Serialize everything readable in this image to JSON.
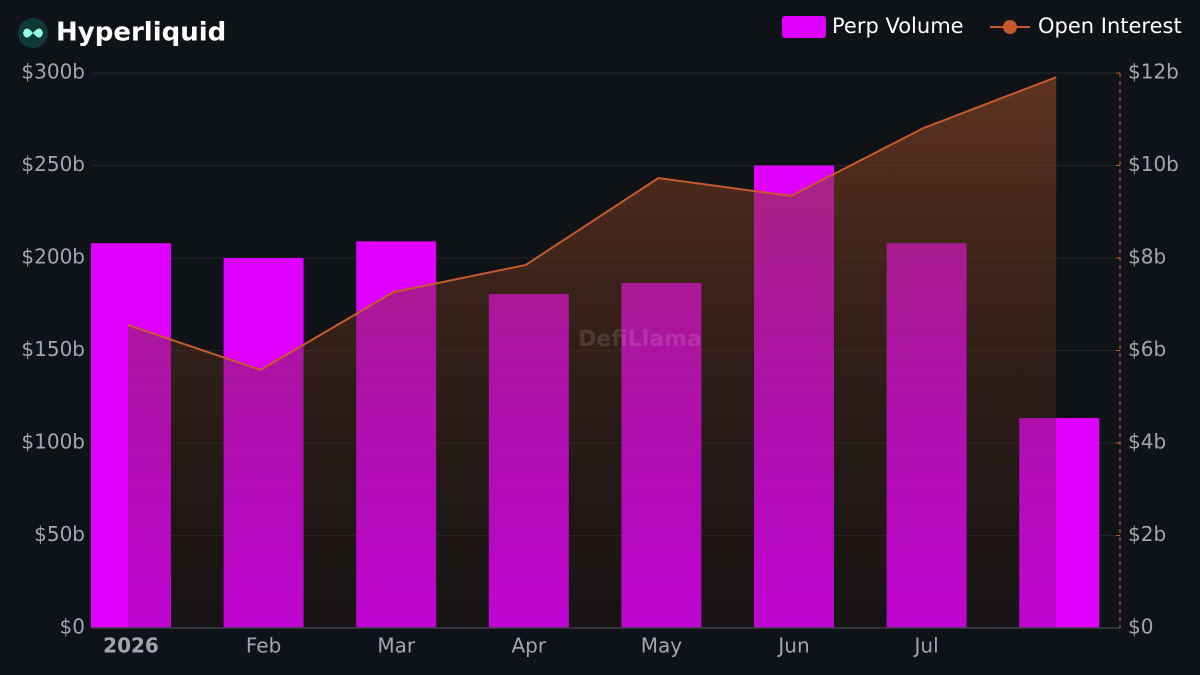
{
  "chart_data": {
    "type": "bar",
    "title": "Hyperliquid",
    "watermark": "DefiLlama",
    "categories": [
      "2026",
      "Feb",
      "Mar",
      "Apr",
      "May",
      "Jun",
      "Jul",
      null
    ],
    "series": [
      {
        "name": "Perp Volume",
        "type": "bar",
        "color": "#df00ff",
        "axis": "y",
        "values": [
          208,
          200,
          209,
          180.5,
          186.5,
          250,
          208,
          113.5
        ]
      },
      {
        "name": "Open Interest",
        "type": "line",
        "area": true,
        "color": "#c65a2e",
        "axis": "y2",
        "values": [
          6.55,
          5.58,
          7.26,
          7.85,
          9.73,
          9.34,
          10.81,
          11.91
        ]
      }
    ],
    "ylim": [
      0,
      300
    ],
    "yticks": [
      {
        "value": 0,
        "label": "$0"
      },
      {
        "value": 50,
        "label": "$50b"
      },
      {
        "value": 100,
        "label": "$100b"
      },
      {
        "value": 150,
        "label": "$150b"
      },
      {
        "value": 200,
        "label": "$200b"
      },
      {
        "value": 250,
        "label": "$250b"
      },
      {
        "value": 300,
        "label": "$300b"
      }
    ],
    "y2lim": [
      0,
      12
    ],
    "y2ticks": [
      {
        "value": 0,
        "label": "$0"
      },
      {
        "value": 2,
        "label": "$2b"
      },
      {
        "value": 4,
        "label": "$4b"
      },
      {
        "value": 6,
        "label": "$6b"
      },
      {
        "value": 8,
        "label": "$8b"
      },
      {
        "value": 10,
        "label": "$10b"
      },
      {
        "value": 12,
        "label": "$12b"
      }
    ],
    "grid": true,
    "legend": "top-right"
  }
}
